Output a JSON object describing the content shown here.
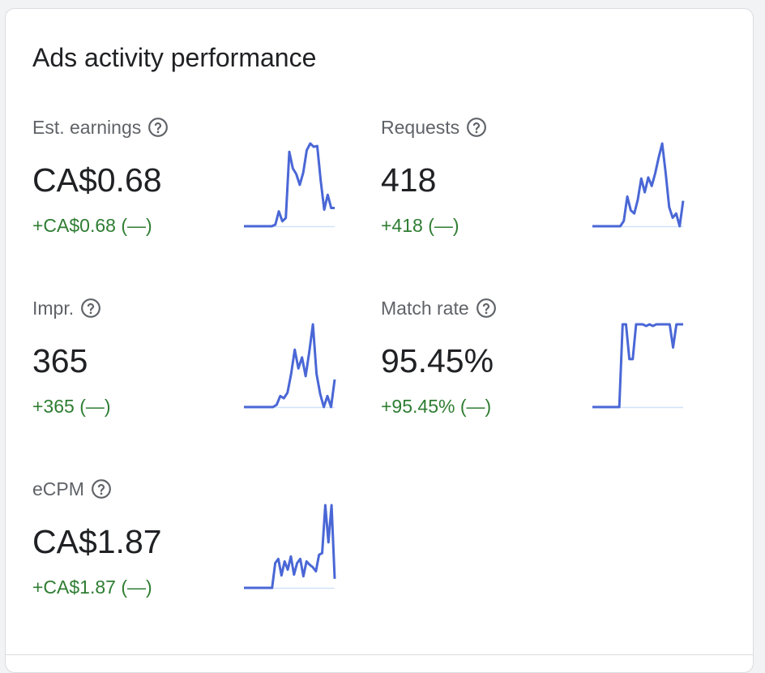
{
  "card": {
    "title": "Ads activity performance"
  },
  "colors": {
    "spark_line": "#4a67d6",
    "baseline": "#d2e3fc",
    "positive_change": "#2e7d32",
    "help_icon": "#5f6368"
  },
  "icons": {
    "help": "help-circle-outline-icon"
  },
  "metrics": [
    {
      "id": "est-earnings",
      "label": "Est. earnings",
      "value": "CA$0.68",
      "change": "+CA$0.68 (—)",
      "series": [
        0,
        0,
        0,
        0,
        0,
        0,
        0,
        0,
        0,
        2,
        18,
        6,
        10,
        90,
        70,
        63,
        50,
        65,
        92,
        100,
        96,
        97,
        55,
        20,
        38,
        22,
        22
      ]
    },
    {
      "id": "requests",
      "label": "Requests",
      "value": "418",
      "change": "+418 (—)",
      "series": [
        0,
        0,
        0,
        0,
        0,
        0,
        0,
        0,
        0,
        5,
        28,
        15,
        12,
        25,
        45,
        32,
        46,
        38,
        50,
        65,
        78,
        50,
        18,
        8,
        12,
        0,
        24
      ]
    },
    {
      "id": "impressions",
      "label": "Impr.",
      "value": "365",
      "change": "+365 (—)",
      "series": [
        0,
        0,
        0,
        0,
        0,
        0,
        0,
        0,
        0,
        2,
        10,
        8,
        13,
        30,
        52,
        35,
        45,
        28,
        50,
        75,
        30,
        12,
        0,
        10,
        0,
        25
      ]
    },
    {
      "id": "match-rate",
      "label": "Match rate",
      "value": "95.45%",
      "change": "+95.45% (—)",
      "series": [
        0,
        0,
        0,
        0,
        0,
        0,
        0,
        0,
        0,
        100,
        100,
        58,
        58,
        100,
        100,
        100,
        98,
        100,
        98,
        100,
        100,
        100,
        100,
        100,
        72,
        100,
        100,
        100
      ]
    },
    {
      "id": "ecpm",
      "label": "eCPM",
      "value": "CA$1.87",
      "change": "+CA$1.87 (—)",
      "series": [
        0,
        0,
        0,
        0,
        0,
        0,
        0,
        0,
        0,
        0,
        30,
        35,
        15,
        32,
        22,
        38,
        16,
        30,
        35,
        14,
        32,
        28,
        25,
        20,
        40,
        42,
        100,
        55,
        100,
        11
      ]
    }
  ]
}
